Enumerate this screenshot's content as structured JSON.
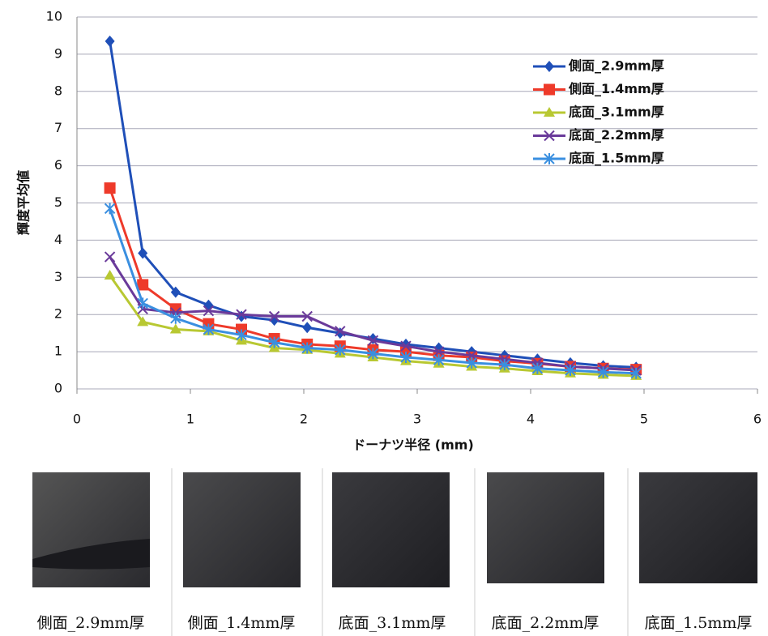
{
  "chart_data": {
    "type": "line",
    "x_label": "ドーナツ半径 (mm)",
    "y_label": "輝度平均値",
    "x": [
      0.29,
      0.58,
      0.87,
      1.16,
      1.45,
      1.74,
      2.03,
      2.32,
      2.61,
      2.9,
      3.19,
      3.48,
      3.77,
      4.06,
      4.35,
      4.64,
      4.93
    ],
    "series": [
      {
        "name": "側面_2.9mm厚",
        "color": "#1f4fb8",
        "marker": "diamond",
        "values": [
          9.35,
          3.65,
          2.6,
          2.25,
          1.95,
          1.85,
          1.65,
          1.5,
          1.35,
          1.2,
          1.1,
          1.0,
          0.9,
          0.8,
          0.7,
          0.62,
          0.58
        ]
      },
      {
        "name": "側面_1.4mm厚",
        "color": "#ee3a2a",
        "marker": "square",
        "values": [
          5.4,
          2.8,
          2.15,
          1.75,
          1.6,
          1.35,
          1.2,
          1.15,
          1.05,
          1.0,
          0.9,
          0.85,
          0.75,
          0.68,
          0.6,
          0.55,
          0.52
        ]
      },
      {
        "name": "底面_3.1mm厚",
        "color": "#b8c832",
        "marker": "triangle",
        "values": [
          3.05,
          1.8,
          1.6,
          1.55,
          1.3,
          1.1,
          1.05,
          0.95,
          0.85,
          0.75,
          0.68,
          0.6,
          0.55,
          0.48,
          0.42,
          0.38,
          0.35
        ]
      },
      {
        "name": "底面_2.2mm厚",
        "color": "#6a3a9a",
        "marker": "x",
        "values": [
          3.55,
          2.15,
          2.05,
          2.1,
          2.0,
          1.95,
          1.95,
          1.55,
          1.3,
          1.15,
          1.0,
          0.9,
          0.8,
          0.7,
          0.6,
          0.55,
          0.5
        ]
      },
      {
        "name": "底面_1.5mm厚",
        "color": "#3a8fe0",
        "marker": "asterisk",
        "values": [
          4.85,
          2.3,
          1.9,
          1.6,
          1.45,
          1.25,
          1.1,
          1.05,
          0.95,
          0.85,
          0.78,
          0.7,
          0.65,
          0.55,
          0.5,
          0.45,
          0.42
        ]
      }
    ],
    "xlim": [
      0,
      6
    ],
    "xticks": [
      0,
      1,
      2,
      3,
      4,
      5,
      6
    ],
    "ylim": [
      0,
      10
    ],
    "yticks": [
      0,
      1,
      2,
      3,
      4,
      5,
      6,
      7,
      8,
      9,
      10
    ],
    "grid": true,
    "legend": "upper right"
  },
  "images": {
    "captions": [
      "側面_2.9mm厚",
      "側面_1.4mm厚",
      "底面_3.1mm厚",
      "底面_2.2mm厚",
      "底面_1.5mm厚"
    ]
  }
}
